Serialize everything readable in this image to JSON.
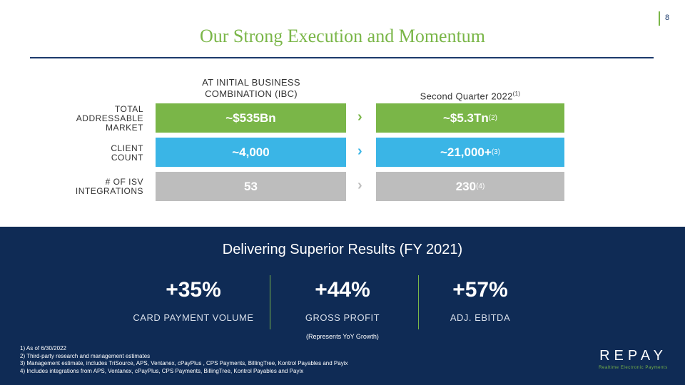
{
  "page_number": "8",
  "title": "Our Strong Execution and Momentum",
  "columns": {
    "ibc_line1": "AT INITIAL BUSINESS",
    "ibc_line2": "COMBINATION (IBC)",
    "q2_label": "Second Quarter 2022",
    "q2_note": "(1)"
  },
  "rows": [
    {
      "label": [
        "TOTAL",
        "ADDRESSABLE",
        "MARKET"
      ],
      "ibc_value": "~$535Bn",
      "q2_value": "~$5.3Tn",
      "q2_note": "(2)"
    },
    {
      "label": [
        "CLIENT",
        "COUNT"
      ],
      "ibc_value": "~4,000",
      "q2_value": "~21,000+",
      "q2_note": "(3)"
    },
    {
      "label": [
        "# OF ISV",
        "INTEGRATIONS"
      ],
      "ibc_value": "53",
      "q2_value": "230",
      "q2_note": "(4)"
    }
  ],
  "arrow_glyph": "›",
  "results": {
    "heading": "Delivering Superior Results (FY 2021)",
    "stats": [
      {
        "value": "+35%",
        "label": "CARD PAYMENT VOLUME"
      },
      {
        "value": "+44%",
        "label": "GROSS PROFIT"
      },
      {
        "value": "+57%",
        "label": "ADJ. EBITDA"
      }
    ],
    "note": "(Represents YoY Growth)"
  },
  "footnotes": [
    "1)  As of 6/30/2022",
    "2) Third-party research and management estimates",
    "3) Management estimate, includes TriSource, APS, Ventanex, cPayPlus , CPS Payments, BillingTree, Kontrol Payables and Payix",
    "4) Includes integrations from APS, Ventanex, cPayPlus, CPS Payments, BillingTree, Kontrol Payables and Payix"
  ],
  "logo": {
    "name": "REPAY",
    "tagline": "Realtime Electronic Payments"
  },
  "colors": {
    "green": "#7ab648",
    "blue": "#3ab5e6",
    "gray": "#bdbdbd",
    "navy": "#0f2b55"
  }
}
